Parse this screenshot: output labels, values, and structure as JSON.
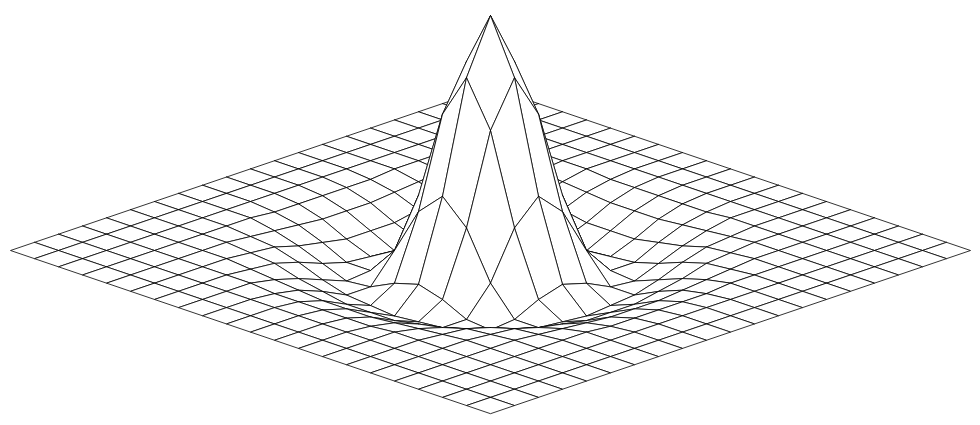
{
  "chart_data": {
    "type": "surface",
    "color": "#000000",
    "tick_labels": false,
    "x": [
      -10,
      -9,
      -8,
      -7,
      -6,
      -5,
      -4,
      -3,
      -2,
      -1,
      0,
      1,
      2,
      3,
      4,
      5,
      6,
      7,
      8,
      9,
      10
    ],
    "y": [
      -10,
      -9,
      -8,
      -7,
      -6,
      -5,
      -4,
      -3,
      -2,
      -1,
      0,
      1,
      2,
      3,
      4,
      5,
      6,
      7,
      8,
      9,
      10
    ],
    "z": [
      [
        0,
        0,
        0,
        0,
        0,
        0,
        0,
        0,
        0,
        0,
        0,
        0,
        0,
        0,
        0,
        0,
        0,
        0,
        0,
        0,
        0
      ],
      [
        0,
        0,
        0,
        0,
        0,
        0,
        0,
        0,
        0,
        0,
        0,
        0,
        0,
        0,
        0,
        0,
        0,
        0,
        0,
        0,
        0
      ],
      [
        0,
        0,
        0,
        0,
        0,
        0,
        0,
        0,
        0,
        0,
        0,
        0,
        0,
        0,
        0,
        0,
        0,
        0,
        0,
        0,
        0
      ],
      [
        0,
        0,
        0,
        0,
        0,
        0,
        0,
        0,
        -0.01,
        -0.01,
        -0.01,
        -0.01,
        -0.01,
        0,
        0,
        0,
        0,
        0,
        0,
        0,
        0
      ],
      [
        0,
        0,
        0,
        0,
        0,
        0,
        -0.01,
        -0.02,
        -0.03,
        -0.04,
        -0.04,
        -0.04,
        -0.03,
        -0.02,
        -0.01,
        0,
        0,
        0,
        0,
        0,
        0
      ],
      [
        0,
        0,
        0,
        0,
        0,
        -0.01,
        -0.02,
        -0.05,
        -0.07,
        -0.09,
        -0.09,
        -0.09,
        -0.07,
        -0.05,
        -0.02,
        -0.01,
        0,
        0,
        0,
        0,
        0
      ],
      [
        0,
        0,
        0,
        0,
        -0.01,
        -0.02,
        -0.05,
        -0.09,
        -0.12,
        -0.13,
        -0.14,
        -0.13,
        -0.12,
        -0.09,
        -0.05,
        -0.02,
        -0.01,
        0,
        0,
        0,
        0
      ],
      [
        0,
        0,
        0,
        0,
        -0.02,
        -0.05,
        -0.09,
        -0.13,
        -0.12,
        -0.07,
        -0.04,
        -0.07,
        -0.12,
        -0.13,
        -0.09,
        -0.05,
        -0.02,
        0,
        0,
        0,
        0
      ],
      [
        0,
        0,
        0,
        -0.01,
        -0.03,
        -0.07,
        -0.12,
        -0.12,
        0,
        0.2,
        0.3,
        0.2,
        0,
        -0.12,
        -0.12,
        -0.07,
        -0.03,
        -0.01,
        0,
        0,
        0
      ],
      [
        0,
        0,
        0,
        -0.01,
        -0.04,
        -0.09,
        -0.13,
        -0.07,
        0.2,
        0.58,
        0.77,
        0.58,
        0.2,
        -0.07,
        -0.13,
        -0.09,
        -0.04,
        -0.01,
        0,
        0,
        0
      ],
      [
        0,
        0,
        0,
        -0.01,
        -0.04,
        -0.09,
        -0.14,
        -0.04,
        0.3,
        0.77,
        1,
        0.77,
        0.3,
        -0.04,
        -0.14,
        -0.09,
        -0.04,
        -0.01,
        0,
        0,
        0
      ],
      [
        0,
        0,
        0,
        -0.01,
        -0.04,
        -0.09,
        -0.13,
        -0.07,
        0.2,
        0.58,
        0.77,
        0.58,
        0.2,
        -0.07,
        -0.13,
        -0.09,
        -0.04,
        -0.01,
        0,
        0,
        0
      ],
      [
        0,
        0,
        0,
        -0.01,
        -0.03,
        -0.07,
        -0.12,
        -0.12,
        0,
        0.2,
        0.3,
        0.2,
        0,
        -0.12,
        -0.12,
        -0.07,
        -0.03,
        -0.01,
        0,
        0,
        0
      ],
      [
        0,
        0,
        0,
        0,
        -0.02,
        -0.05,
        -0.09,
        -0.13,
        -0.12,
        -0.07,
        -0.04,
        -0.07,
        -0.12,
        -0.13,
        -0.09,
        -0.05,
        -0.02,
        0,
        0,
        0,
        0
      ],
      [
        0,
        0,
        0,
        0,
        -0.01,
        -0.02,
        -0.05,
        -0.09,
        -0.12,
        -0.13,
        -0.14,
        -0.13,
        -0.12,
        -0.09,
        -0.05,
        -0.02,
        -0.01,
        0,
        0,
        0,
        0
      ],
      [
        0,
        0,
        0,
        0,
        0,
        -0.01,
        -0.02,
        -0.05,
        -0.07,
        -0.09,
        -0.09,
        -0.09,
        -0.07,
        -0.05,
        -0.02,
        -0.01,
        0,
        0,
        0,
        0,
        0
      ],
      [
        0,
        0,
        0,
        0,
        0,
        0,
        -0.01,
        -0.02,
        -0.03,
        -0.04,
        -0.04,
        -0.04,
        -0.03,
        -0.02,
        -0.01,
        0,
        0,
        0,
        0,
        0,
        0
      ],
      [
        0,
        0,
        0,
        0,
        0,
        0,
        0,
        0,
        -0.01,
        -0.01,
        -0.01,
        -0.01,
        -0.01,
        0,
        0,
        0,
        0,
        0,
        0,
        0,
        0
      ],
      [
        0,
        0,
        0,
        0,
        0,
        0,
        0,
        0,
        0,
        0,
        0,
        0,
        0,
        0,
        0,
        0,
        0,
        0,
        0,
        0,
        0
      ],
      [
        0,
        0,
        0,
        0,
        0,
        0,
        0,
        0,
        0,
        0,
        0,
        0,
        0,
        0,
        0,
        0,
        0,
        0,
        0,
        0,
        0
      ],
      [
        0,
        0,
        0,
        0,
        0,
        0,
        0,
        0,
        0,
        0,
        0,
        0,
        0,
        0,
        0,
        0,
        0,
        0,
        0,
        0,
        0
      ]
    ]
  }
}
